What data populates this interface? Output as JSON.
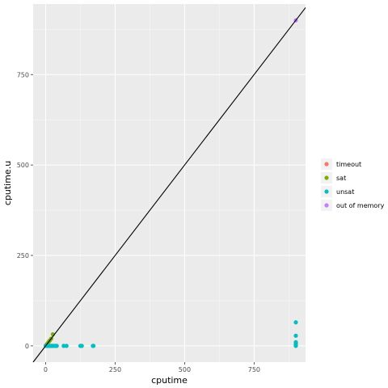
{
  "chart_data": {
    "type": "scatter",
    "xlabel": "cputime",
    "ylabel": "cputime.u",
    "xlim": [
      -45,
      935
    ],
    "ylim": [
      -45,
      945
    ],
    "x_ticks": [
      0,
      250,
      500,
      750
    ],
    "y_ticks": [
      0,
      250,
      500,
      750
    ],
    "grid": true,
    "legend_position": "right",
    "reference_line": {
      "type": "identity",
      "slope": 1,
      "intercept": 0
    },
    "series": [
      {
        "name": "timeout",
        "color": "#F8766D",
        "points": []
      },
      {
        "name": "sat",
        "color": "#7CAE00",
        "points": [
          [
            2,
            2
          ],
          [
            5,
            5
          ],
          [
            8,
            8
          ],
          [
            12,
            12
          ],
          [
            15,
            15
          ],
          [
            20,
            20
          ],
          [
            26,
            32
          ]
        ]
      },
      {
        "name": "unsat",
        "color": "#00BFC4",
        "points": [
          [
            0,
            0
          ],
          [
            2,
            0
          ],
          [
            4,
            0
          ],
          [
            6,
            0
          ],
          [
            8,
            0
          ],
          [
            10,
            0
          ],
          [
            14,
            0
          ],
          [
            18,
            0
          ],
          [
            22,
            0
          ],
          [
            25,
            0
          ],
          [
            30,
            0
          ],
          [
            35,
            0
          ],
          [
            40,
            0
          ],
          [
            65,
            0
          ],
          [
            75,
            0
          ],
          [
            125,
            0
          ],
          [
            130,
            0
          ],
          [
            170,
            0
          ],
          [
            172,
            0
          ],
          [
            900,
            0
          ],
          [
            900,
            3
          ],
          [
            900,
            6
          ],
          [
            900,
            10
          ],
          [
            900,
            28
          ],
          [
            900,
            65
          ]
        ]
      },
      {
        "name": "out of memory",
        "color": "#C77CFF",
        "points": [
          [
            900,
            900
          ]
        ]
      }
    ]
  }
}
